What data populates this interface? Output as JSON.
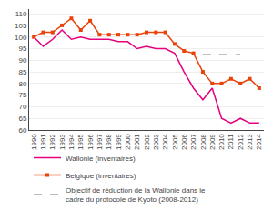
{
  "chart_data": {
    "type": "line",
    "x": [
      1990,
      1991,
      1992,
      1993,
      1994,
      1995,
      1996,
      1997,
      1998,
      1999,
      2000,
      2001,
      2002,
      2003,
      2004,
      2005,
      2006,
      2007,
      2008,
      2009,
      2010,
      2011,
      2012,
      2013,
      2014
    ],
    "series": [
      {
        "name": "Wallonie (inventaires)",
        "color": "#e6007e",
        "values": [
          100,
          96,
          99,
          103,
          99,
          100,
          99,
          99,
          99,
          98,
          98,
          95,
          96,
          95,
          95,
          93,
          85,
          78,
          73,
          78,
          65,
          63,
          65,
          63,
          63
        ]
      },
      {
        "name": "Belgique (inventaires)",
        "color": "#e8430a",
        "marker": "square",
        "values": [
          100,
          102,
          102,
          105,
          108,
          103,
          107,
          101,
          101,
          101,
          101,
          101,
          102,
          102,
          102,
          97,
          94,
          93,
          85,
          80,
          80,
          82,
          80,
          82,
          78
        ]
      },
      {
        "name": "Objectif de réduction de la Wallonie dans le\ncadre du protocole de Kyoto (2008-2012)",
        "color": "#aaaaaa",
        "line_style": "dashed",
        "values": [
          null,
          null,
          null,
          null,
          null,
          null,
          null,
          null,
          null,
          null,
          null,
          null,
          null,
          null,
          null,
          null,
          null,
          null,
          92.5,
          92.5,
          92.5,
          92.5,
          92.5,
          null,
          null
        ]
      }
    ],
    "xlim": [
      1989.5,
      2014.5
    ],
    "xticks": [
      1990,
      1991,
      1992,
      1993,
      1994,
      1995,
      1996,
      1997,
      1998,
      1999,
      2000,
      2001,
      2002,
      2003,
      2004,
      2005,
      2006,
      2007,
      2008,
      2009,
      2010,
      2011,
      2012,
      2013,
      2014
    ],
    "ylim": [
      60,
      112
    ],
    "yticks": [
      60,
      65,
      70,
      75,
      80,
      85,
      90,
      95,
      100,
      105,
      110
    ],
    "grid": true,
    "legend": "bottom"
  }
}
